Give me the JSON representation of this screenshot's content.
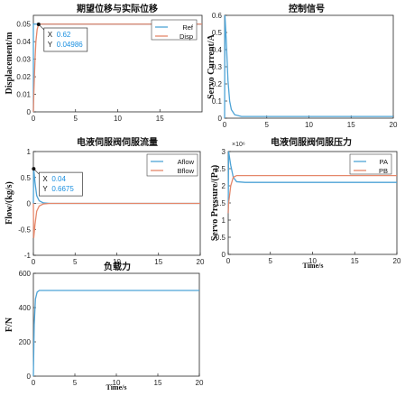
{
  "colors": {
    "ref": "#4DA3D6",
    "disp": "#E5876A",
    "axis": "#262626"
  },
  "chart_data": [
    {
      "type": "line",
      "title": "期望位移与实际位移",
      "xlabel": "",
      "ylabel": "Displacement/m",
      "xlim": [
        0,
        20
      ],
      "ylim": [
        0,
        0.055
      ],
      "xticks": [
        "0",
        "5",
        "10",
        "15"
      ],
      "yticks": [
        "0",
        "0.01",
        "0.02",
        "0.03",
        "0.04",
        "0.05"
      ],
      "legend": "top-right",
      "series": [
        {
          "name": "Ref",
          "color": "#4DA3D6",
          "points": [
            [
              0,
              0.0
            ],
            [
              0.0,
              0.05
            ],
            [
              20,
              0.05
            ]
          ]
        },
        {
          "name": "Disp",
          "color": "#E5876A",
          "points": [
            [
              0,
              0
            ],
            [
              0.05,
              0.01
            ],
            [
              0.12,
              0.02
            ],
            [
              0.2,
              0.03
            ],
            [
              0.3,
              0.04
            ],
            [
              0.45,
              0.047
            ],
            [
              0.62,
              0.04986
            ],
            [
              1,
              0.05
            ],
            [
              20,
              0.05
            ]
          ]
        }
      ],
      "datatip": {
        "x_label": "X",
        "x_value": "0.62",
        "y_label": "Y",
        "y_value": "0.04986",
        "at": [
          0.62,
          0.04986
        ]
      }
    },
    {
      "type": "line",
      "title": "控制信号",
      "xlabel": "",
      "ylabel": "Servo Current/A",
      "xlim": [
        0,
        20
      ],
      "ylim": [
        0,
        0.6
      ],
      "xticks": [
        "0",
        "5",
        "10",
        "15",
        "20"
      ],
      "yticks": [
        "0",
        "0.1",
        "0.2",
        "0.3",
        "0.4",
        "0.5",
        "0.6"
      ],
      "series": [
        {
          "name": "",
          "color": "#4DA3D6",
          "points": [
            [
              0,
              0.0
            ],
            [
              0.04,
              0.6
            ],
            [
              0.2,
              0.45
            ],
            [
              0.4,
              0.22
            ],
            [
              0.6,
              0.1
            ],
            [
              0.8,
              0.05
            ],
            [
              1.2,
              0.02
            ],
            [
              2,
              0.01
            ],
            [
              20,
              0.01
            ]
          ]
        }
      ]
    },
    {
      "type": "line",
      "title": "电液伺服阀伺服流量",
      "xlabel": "",
      "ylabel": "Flow/(kg/s)",
      "xlim": [
        0,
        20
      ],
      "ylim": [
        -1,
        1
      ],
      "xticks": [
        "0",
        "5",
        "10",
        "15",
        "20"
      ],
      "yticks": [
        "-1",
        "-0.5",
        "0",
        "0.5",
        "1"
      ],
      "legend": "top-right",
      "series": [
        {
          "name": "Aflow",
          "color": "#4DA3D6",
          "points": [
            [
              0,
              0
            ],
            [
              0.04,
              0.6675
            ],
            [
              0.2,
              0.4
            ],
            [
              0.4,
              0.15
            ],
            [
              0.7,
              0.05
            ],
            [
              1.2,
              0.01
            ],
            [
              2,
              0
            ],
            [
              20,
              0
            ]
          ]
        },
        {
          "name": "Bflow",
          "color": "#E5876A",
          "points": [
            [
              0,
              0
            ],
            [
              0.04,
              -0.6675
            ],
            [
              0.2,
              -0.4
            ],
            [
              0.4,
              -0.15
            ],
            [
              0.7,
              -0.05
            ],
            [
              1.2,
              -0.01
            ],
            [
              2,
              0
            ],
            [
              20,
              0
            ]
          ]
        }
      ],
      "datatip": {
        "x_label": "X",
        "x_value": "0.04",
        "y_label": "Y",
        "y_value": "0.6675",
        "at": [
          0.04,
          0.6675
        ]
      }
    },
    {
      "type": "line",
      "title": "电液伺服阀伺服压力",
      "xlabel": "Time/s",
      "ylabel": "Servo Pressure/(Pa)",
      "exponent_label": "×10⁶",
      "xlim": [
        0,
        20
      ],
      "ylim": [
        0,
        3
      ],
      "xticks": [
        "0",
        "5",
        "10",
        "15",
        "20"
      ],
      "yticks": [
        "0",
        "0.5",
        "1",
        "1.5",
        "2",
        "2.5",
        "3"
      ],
      "legend": "top-right",
      "series": [
        {
          "name": "PA",
          "color": "#4DA3D6",
          "points": [
            [
              0,
              1.2
            ],
            [
              0.05,
              3.0
            ],
            [
              0.3,
              2.6
            ],
            [
              0.6,
              2.25
            ],
            [
              1,
              2.12
            ],
            [
              2,
              2.1
            ],
            [
              20,
              2.1
            ]
          ]
        },
        {
          "name": "PB",
          "color": "#E5876A",
          "points": [
            [
              0,
              1.2
            ],
            [
              0.05,
              1.5
            ],
            [
              0.3,
              2.0
            ],
            [
              0.6,
              2.25
            ],
            [
              1,
              2.3
            ],
            [
              2,
              2.3
            ],
            [
              20,
              2.3
            ]
          ]
        }
      ]
    },
    {
      "type": "line",
      "title": "负载力",
      "xlabel": "Time/s",
      "ylabel": "F/N",
      "xlim": [
        0,
        20
      ],
      "ylim": [
        0,
        600
      ],
      "xticks": [
        "0",
        "5",
        "10",
        "15",
        "20"
      ],
      "yticks": [
        "0",
        "200",
        "400",
        "600"
      ],
      "series": [
        {
          "name": "",
          "color": "#4DA3D6",
          "points": [
            [
              0,
              0
            ],
            [
              0.1,
              300
            ],
            [
              0.25,
              450
            ],
            [
              0.45,
              490
            ],
            [
              0.7,
              500
            ],
            [
              20,
              500
            ]
          ]
        }
      ]
    }
  ]
}
